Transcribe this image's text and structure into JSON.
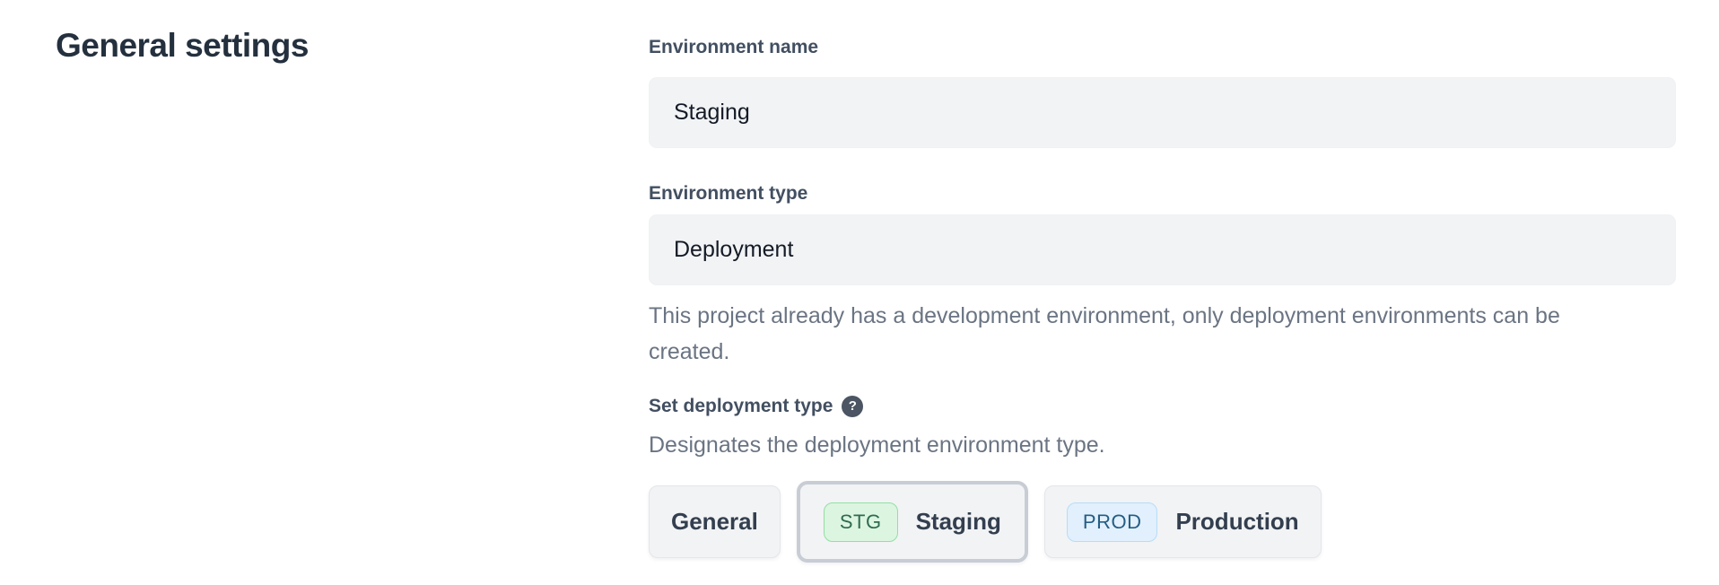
{
  "heading": {
    "title": "General settings"
  },
  "form": {
    "environment_name": {
      "label": "Environment name",
      "value": "Staging"
    },
    "environment_type": {
      "label": "Environment type",
      "value": "Deployment",
      "help": "This project already has a development environment, only deployment environments can be created."
    },
    "deployment_type": {
      "label": "Set deployment type",
      "help_icon": "question-mark-icon",
      "help_glyph": "?",
      "description": "Designates the deployment environment type.",
      "options": [
        {
          "label": "General",
          "badge": "",
          "selected": false
        },
        {
          "label": "Staging",
          "badge": "STG",
          "selected": true
        },
        {
          "label": "Production",
          "badge": "PROD",
          "selected": false
        }
      ]
    }
  },
  "colors": {
    "heading_text": "#24303e",
    "label_text": "#424f61",
    "input_background": "#f2f3f5",
    "input_text": "#141b26",
    "muted_text": "#6a7483",
    "button_background": "#f2f3f5",
    "button_border": "#e4e6ea",
    "selected_border": "#c8cdd5",
    "stg_badge_background": "#dcf5e1",
    "stg_badge_border": "#90e0a2",
    "stg_badge_text": "#2f6b50",
    "prod_badge_background": "#e1f0fc",
    "prod_badge_border": "#b7dcf8",
    "prod_badge_text": "#255d85",
    "help_icon_background": "#4b5563"
  }
}
